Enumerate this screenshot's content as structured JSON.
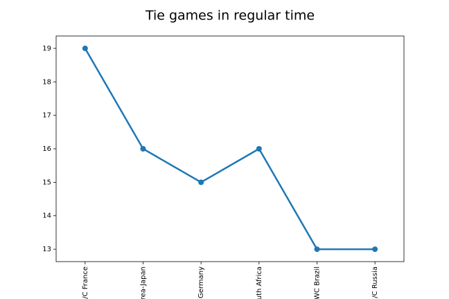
{
  "chart_data": {
    "type": "line",
    "title": "Tie games in regular time",
    "categories": [
      "/C France",
      "rea-Japan",
      "Germany",
      "uth Africa",
      "WC Brazil",
      "/C Russia"
    ],
    "values": [
      19,
      16,
      15,
      16,
      13,
      13
    ],
    "color": "#1f77b4",
    "ylim": [
      12.63,
      19.37
    ],
    "yticks": [
      13,
      14,
      15,
      16,
      17,
      18,
      19
    ],
    "grid": false
  }
}
